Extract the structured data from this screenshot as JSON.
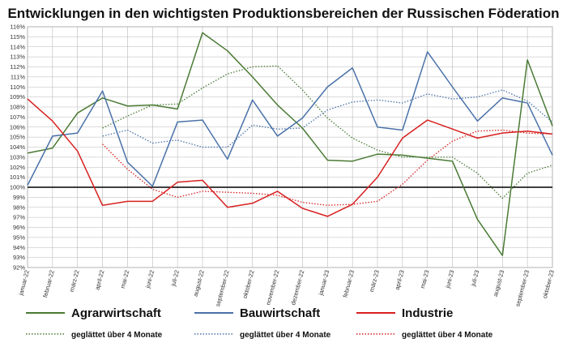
{
  "chart_data": {
    "type": "line",
    "title": "Entwicklungen in den wichtigsten Produktionsbereichen der Russischen Föderation",
    "xlabel": "",
    "ylabel": "",
    "ylim": [
      92,
      116
    ],
    "y_tick_step": 1,
    "y_tick_suffix": "%",
    "reference_line": 100,
    "grid": true,
    "categories": [
      "januar-22",
      "februar-22",
      "märz-22",
      "april-22",
      "mai-22",
      "juni-22",
      "juli-22",
      "august-22",
      "september-22",
      "oktober-22",
      "november-22",
      "dezember-22",
      "januar-23",
      "februar-23",
      "märz-23",
      "april-23",
      "mai-23",
      "juni-23",
      "juli-23",
      "august-23",
      "september-23",
      "oktober-23"
    ],
    "x_tick_labels": [
      "januar-22",
      "februar-22",
      "märz-22",
      "april-22",
      "mai-22",
      "juni-22",
      "juli-22",
      "august-22",
      "september-22",
      "oktober-22",
      "november-22",
      "dezember-22",
      "januar-23",
      "februar-23",
      "märz-23",
      "april-23",
      "mai-23",
      "juni-23",
      "juli-23",
      "august-23",
      "september-23",
      "oktober-23"
    ],
    "series": [
      {
        "name": "Agrarwirtschaft",
        "color": "#4a7a34",
        "style": "solid",
        "values": [
          103.4,
          103.9,
          107.4,
          108.9,
          108.1,
          108.2,
          107.8,
          115.4,
          113.6,
          111.0,
          108.2,
          105.9,
          102.7,
          102.6,
          103.3,
          103.2,
          102.9,
          102.6,
          96.8,
          93.2,
          112.7,
          106.1
        ]
      },
      {
        "name": "Bauwirtschaft",
        "color": "#4a72a8",
        "style": "solid",
        "values": [
          100.2,
          105.1,
          105.4,
          109.6,
          102.5,
          100.1,
          106.5,
          106.7,
          102.8,
          108.7,
          105.1,
          106.9,
          110.0,
          111.9,
          106.0,
          105.7,
          113.5,
          110.0,
          106.6,
          108.9,
          108.4,
          103.2
        ]
      },
      {
        "name": "Industrie",
        "color": "#d82020",
        "style": "solid",
        "values": [
          108.8,
          106.6,
          103.6,
          98.2,
          98.6,
          98.6,
          100.5,
          100.7,
          98.0,
          98.4,
          99.6,
          97.9,
          97.1,
          98.3,
          101.0,
          104.9,
          106.7,
          105.8,
          104.9,
          105.4,
          105.6,
          105.3
        ]
      },
      {
        "name": "geglättet über 4 Monate",
        "color": "#4a7a34",
        "style": "dotted",
        "values": [
          null,
          null,
          null,
          105.9,
          107.1,
          108.2,
          108.3,
          109.9,
          111.3,
          112.0,
          112.1,
          109.7,
          106.9,
          104.9,
          103.7,
          103.0,
          103.0,
          103.0,
          101.4,
          98.9,
          101.4,
          102.2
        ]
      },
      {
        "name": "geglättet über 4 Monate",
        "color": "#4a72a8",
        "style": "dotted",
        "values": [
          null,
          null,
          null,
          105.1,
          105.7,
          104.4,
          104.7,
          104.0,
          104.0,
          106.2,
          105.8,
          105.9,
          107.7,
          108.5,
          108.7,
          108.4,
          109.3,
          108.8,
          109.0,
          109.7,
          108.6,
          106.5
        ]
      },
      {
        "name": "geglättet über 4 Monate",
        "color": "#d82020",
        "style": "dotted",
        "values": [
          null,
          null,
          null,
          104.3,
          101.8,
          99.8,
          99.0,
          99.6,
          99.5,
          99.4,
          99.2,
          98.5,
          98.2,
          98.3,
          98.6,
          100.3,
          102.7,
          104.6,
          105.6,
          105.7,
          105.4,
          105.3
        ]
      }
    ],
    "legend": {
      "placement": "bottom",
      "main": [
        {
          "label": "Agrarwirtschaft",
          "color": "#4a7a34"
        },
        {
          "label": "Bauwirtschaft",
          "color": "#4a72a8"
        },
        {
          "label": "Industrie",
          "color": "#d82020"
        }
      ],
      "smoothed": [
        {
          "label": "geglättet über 4 Monate",
          "color": "#4a7a34"
        },
        {
          "label": "geglättet über 4 Monate",
          "color": "#4a72a8"
        },
        {
          "label": "geglättet über 4 Monate",
          "color": "#d82020"
        }
      ]
    }
  }
}
